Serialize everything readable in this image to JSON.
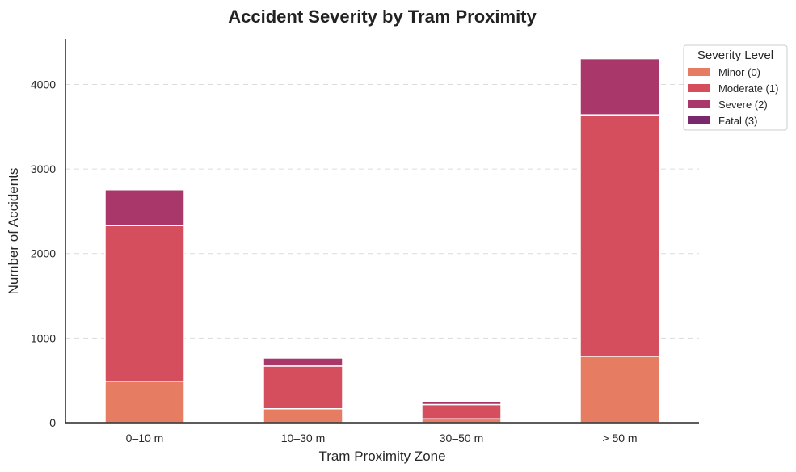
{
  "chart_data": {
    "type": "bar",
    "stacked": true,
    "title": "Accident Severity by Tram Proximity",
    "xlabel": "Tram Proximity Zone",
    "ylabel": "Number of Accidents",
    "categories": [
      "0–10 m",
      "10–30 m",
      "30–50 m",
      "> 50 m"
    ],
    "ylim": [
      0,
      4540
    ],
    "yticks": [
      0,
      1000,
      2000,
      3000,
      4000
    ],
    "grid": "horizontal dashed",
    "legend": {
      "title": "Severity Level",
      "placement": "top-right, outside plot"
    },
    "series": [
      {
        "name": "Minor (0)",
        "color": "#e67c62",
        "values": [
          490,
          165,
          45,
          785
        ]
      },
      {
        "name": "Moderate (1)",
        "color": "#d44e5d",
        "values": [
          1840,
          505,
          170,
          2855
        ]
      },
      {
        "name": "Severe (2)",
        "color": "#a9376a",
        "values": [
          425,
          95,
          40,
          665
        ]
      },
      {
        "name": "Fatal (3)",
        "color": "#7a2a6c",
        "values": [
          0,
          0,
          0,
          0
        ]
      }
    ]
  }
}
